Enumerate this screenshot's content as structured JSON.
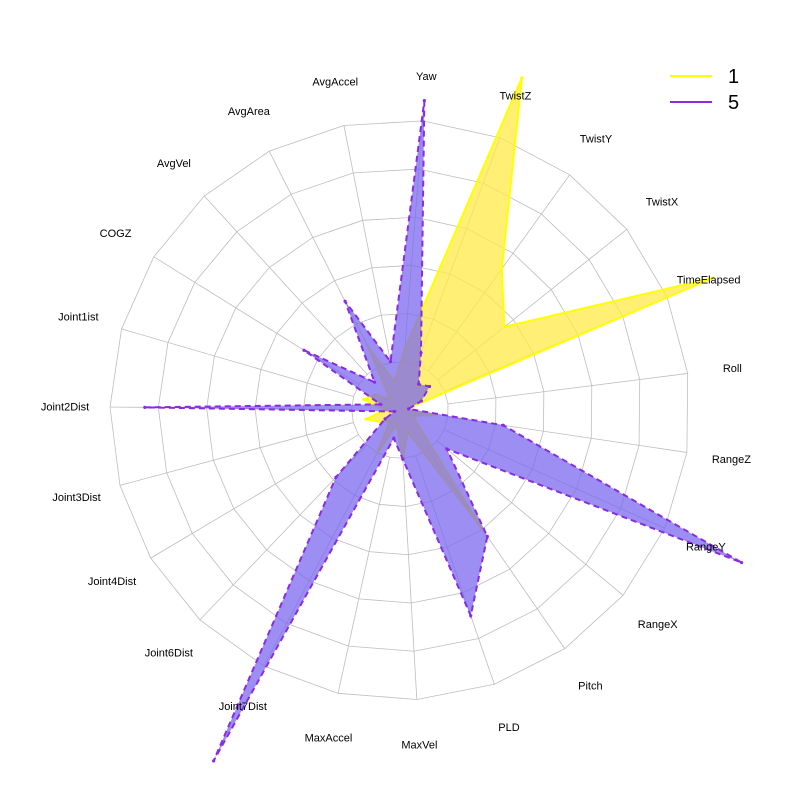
{
  "chart_data": {
    "type": "radar",
    "axes": [
      "Yaw",
      "TwistZ",
      "TwistY",
      "TwistX",
      "TimeElapsed",
      "Roll",
      "RangeZ",
      "RangeY",
      "RangeX",
      "Pitch",
      "PLD",
      "MaxVel",
      "MaxAccel",
      "Joint7Dist",
      "Joint6Dist",
      "Joint4Dist",
      "Joint3Dist",
      "Joint2Dist",
      "Joint1ist",
      "COGZ",
      "AvgVel",
      "AvgArea",
      "AvgAccel"
    ],
    "rlim": [
      0,
      1
    ],
    "grid_rings": 6,
    "grid": true,
    "legend_position": "top-right",
    "series": [
      {
        "name": "1",
        "color": "#ffff00",
        "fill": "#ffea46",
        "dashed": false,
        "values": [
          0.21,
          1.22,
          0.6,
          0.46,
          1.17,
          0.02,
          0.12,
          0.05,
          0.08,
          0.5,
          0.08,
          0.17,
          0.05,
          0.17,
          0.05,
          0.08,
          0.12,
          0.05,
          0.13,
          0.1,
          0.05,
          0.24,
          0.1
        ]
      },
      {
        "name": "5",
        "color": "#8a2be2",
        "fill": "#7b68ee",
        "dashed": true,
        "values": [
          1.07,
          0.21,
          0.11,
          0.13,
          0.08,
          0.03,
          0.36,
          1.29,
          0.21,
          0.53,
          0.75,
          0.17,
          0.1,
          1.37,
          0.32,
          0.06,
          0.02,
          0.88,
          0.07,
          0.39,
          0.13,
          0.42,
          0.17
        ]
      }
    ],
    "legend": [
      {
        "label": "1",
        "color": "#ffff00"
      },
      {
        "label": "5",
        "color": "#8a2be2"
      }
    ]
  }
}
